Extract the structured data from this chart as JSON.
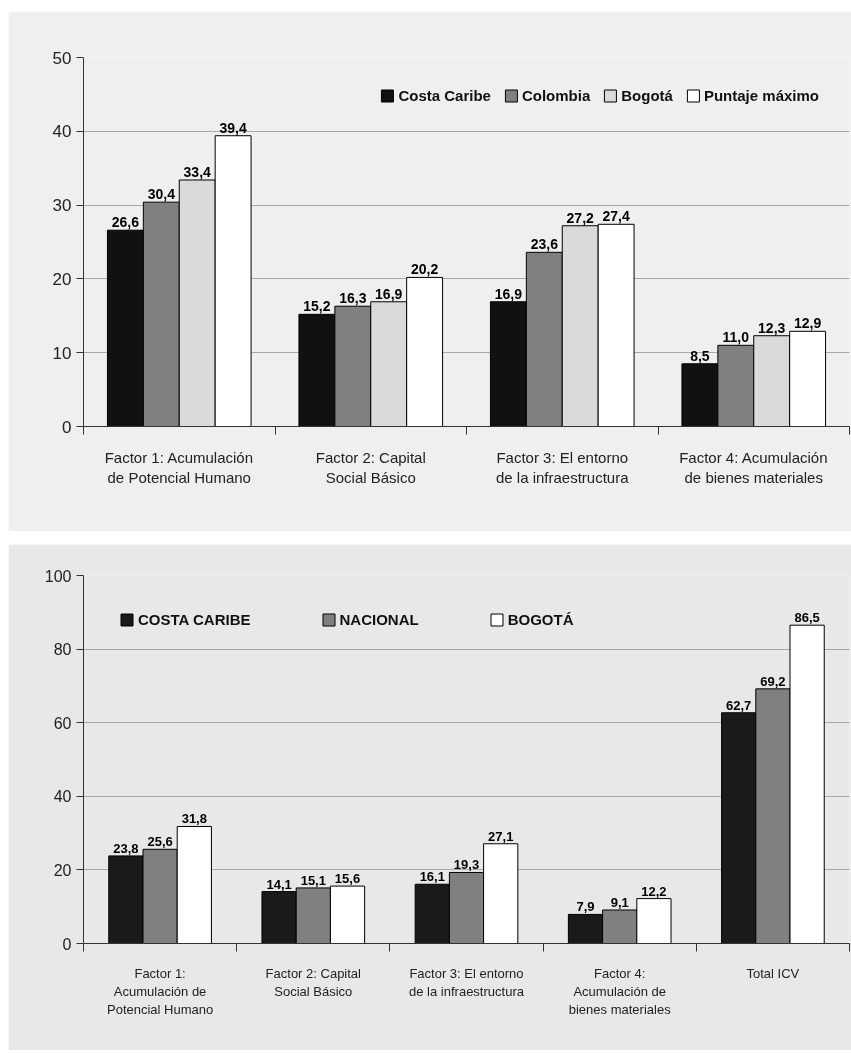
{
  "chart_data": [
    {
      "type": "bar",
      "categories": [
        "Factor 1: Acumulación\nde Potencial Humano",
        "Factor 2: Capital\nSocial Básico",
        "Factor 3: El entorno\nde la infraestructura",
        "Factor 4: Acumulación\nde bienes materiales"
      ],
      "series": [
        {
          "name": "Costa Caribe",
          "color": "#111111",
          "values": [
            26.6,
            15.2,
            16.9,
            8.5
          ],
          "value_labels": [
            "26,6",
            "15,2",
            "16,9",
            "8,5"
          ]
        },
        {
          "name": "Colombia",
          "color": "#808080",
          "values": [
            30.4,
            16.3,
            23.6,
            11.0
          ],
          "value_labels": [
            "30,4",
            "16,3",
            "23,6",
            "11,0"
          ]
        },
        {
          "name": "Bogotá",
          "color": "#dadada",
          "values": [
            33.4,
            16.9,
            27.2,
            12.3
          ],
          "value_labels": [
            "33,4",
            "16,9",
            "27,2",
            "12,3"
          ]
        },
        {
          "name": "Puntaje máximo",
          "color": "#ffffff",
          "values": [
            39.4,
            20.2,
            27.4,
            12.9
          ],
          "value_labels": [
            "39,4",
            "20,2",
            "27,4",
            "12,9"
          ]
        }
      ],
      "ylim": [
        0,
        50
      ],
      "yticks": [
        0,
        10,
        20,
        30,
        40,
        50
      ],
      "grid": "y",
      "legend": "top right"
    },
    {
      "type": "bar",
      "categories": [
        "Factor 1:\nAcumulación de\nPotencial Humano",
        "Factor 2: Capital\nSocial Básico",
        "Factor 3: El entorno\nde la infraestructura",
        "Factor 4:\nAcumulación de\nbienes materiales",
        "Total ICV"
      ],
      "series": [
        {
          "name": "COSTA CARIBE",
          "color": "#1a1a1a",
          "values": [
            23.8,
            14.1,
            16.1,
            7.9,
            62.7
          ],
          "value_labels": [
            "23,8",
            "14,1",
            "16,1",
            "7,9",
            "62,7"
          ]
        },
        {
          "name": "NACIONAL",
          "color": "#808080",
          "values": [
            25.6,
            15.1,
            19.3,
            9.1,
            69.2
          ],
          "value_labels": [
            "25,6",
            "15,1",
            "19,3",
            "9,1",
            "69,2"
          ]
        },
        {
          "name": "BOGOTÁ",
          "color": "#ffffff",
          "values": [
            31.8,
            15.6,
            27.1,
            12.2,
            86.5
          ],
          "value_labels": [
            "31,8",
            "15,6",
            "27,1",
            "12,2",
            "86,5"
          ]
        }
      ],
      "ylim": [
        0,
        100
      ],
      "yticks": [
        0,
        20,
        40,
        60,
        80,
        100
      ],
      "grid": "y",
      "legend": "top left"
    }
  ]
}
